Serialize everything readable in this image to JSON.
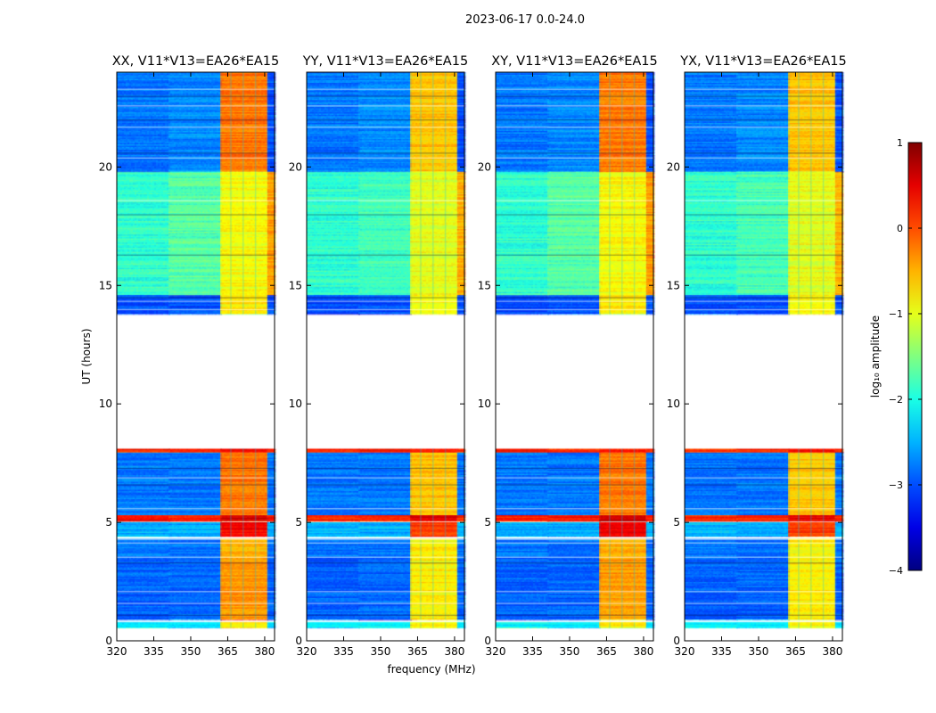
{
  "chart_data": {
    "type": "heatmap",
    "suptitle": "2023-06-17 0.0-24.0",
    "xlabel": "frequency (MHz)",
    "ylabel": "UT (hours)",
    "xlim": [
      320,
      384
    ],
    "ylim": [
      0,
      24
    ],
    "xticks": [
      "320",
      "335",
      "350",
      "365",
      "380"
    ],
    "yticks": [
      "0",
      "5",
      "10",
      "15",
      "20"
    ],
    "freq_bands_mhz": [
      [
        320,
        341
      ],
      [
        341,
        362
      ],
      [
        362,
        381
      ],
      [
        381,
        384
      ]
    ],
    "time_segments_hours": [
      [
        0.55,
        0.8
      ],
      [
        0.9,
        3.5
      ],
      [
        3.5,
        4.3
      ],
      [
        4.4,
        5.0
      ],
      [
        5.05,
        5.3
      ],
      [
        5.3,
        7.95
      ],
      [
        7.95,
        8.1
      ],
      [
        13.8,
        14.6
      ],
      [
        14.6,
        19.8
      ],
      [
        19.8,
        24.0
      ]
    ],
    "panels": [
      {
        "title": "XX, V11*V13=EA26*EA15",
        "values": [
          [
            -2.2,
            -2.2,
            -0.8,
            -2.2
          ],
          [
            -2.9,
            -2.9,
            -0.4,
            -2.9
          ],
          [
            -2.8,
            -2.8,
            -0.5,
            -2.8
          ],
          [
            -2.5,
            -2.5,
            0.4,
            -2.5
          ],
          [
            0.3,
            0.3,
            0.6,
            0.3
          ],
          [
            -2.8,
            -2.8,
            -0.2,
            -2.8
          ],
          [
            0.2,
            0.2,
            0.3,
            0.2
          ],
          [
            -3.0,
            -3.0,
            -0.8,
            -3.0
          ],
          [
            -1.9,
            -1.7,
            -0.9,
            -0.4
          ],
          [
            -2.8,
            -2.7,
            -0.2,
            -3.0
          ]
        ]
      },
      {
        "title": "YY, V11*V13=EA26*EA15",
        "values": [
          [
            -2.2,
            -2.2,
            -0.9,
            -2.2
          ],
          [
            -2.9,
            -2.9,
            -0.8,
            -2.9
          ],
          [
            -2.8,
            -2.8,
            -0.8,
            -2.8
          ],
          [
            -2.5,
            -2.5,
            0.1,
            -2.5
          ],
          [
            0.2,
            0.2,
            0.5,
            0.2
          ],
          [
            -2.8,
            -2.8,
            -0.6,
            -2.8
          ],
          [
            0.2,
            0.2,
            0.3,
            0.2
          ],
          [
            -3.0,
            -3.0,
            -0.9,
            -3.0
          ],
          [
            -1.9,
            -1.8,
            -1.0,
            -0.5
          ],
          [
            -2.8,
            -2.7,
            -0.6,
            -3.0
          ]
        ]
      },
      {
        "title": "XY, V11*V13=EA26*EA15",
        "values": [
          [
            -2.2,
            -2.2,
            -0.8,
            -2.2
          ],
          [
            -2.9,
            -2.9,
            -0.4,
            -2.9
          ],
          [
            -2.8,
            -2.8,
            -0.5,
            -2.8
          ],
          [
            -2.5,
            -2.5,
            0.4,
            -2.5
          ],
          [
            0.3,
            0.3,
            0.6,
            0.3
          ],
          [
            -2.8,
            -2.8,
            -0.2,
            -2.8
          ],
          [
            0.2,
            0.2,
            0.3,
            0.2
          ],
          [
            -3.0,
            -3.0,
            -0.8,
            -3.0
          ],
          [
            -1.9,
            -1.7,
            -0.9,
            -0.4
          ],
          [
            -2.8,
            -2.7,
            -0.2,
            -3.0
          ]
        ]
      },
      {
        "title": "YX, V11*V13=EA26*EA15",
        "values": [
          [
            -2.2,
            -2.2,
            -0.9,
            -2.2
          ],
          [
            -2.9,
            -2.9,
            -0.8,
            -2.9
          ],
          [
            -2.8,
            -2.8,
            -0.8,
            -2.8
          ],
          [
            -2.5,
            -2.5,
            0.1,
            -2.5
          ],
          [
            0.2,
            0.2,
            0.5,
            0.2
          ],
          [
            -2.8,
            -2.8,
            -0.6,
            -2.8
          ],
          [
            0.2,
            0.2,
            0.3,
            0.2
          ],
          [
            -3.0,
            -3.0,
            -0.9,
            -3.0
          ],
          [
            -1.9,
            -1.8,
            -1.0,
            -0.5
          ],
          [
            -2.8,
            -2.7,
            -0.6,
            -3.0
          ]
        ]
      }
    ],
    "colorbar": {
      "label": "log₁₀ amplitude",
      "range": [
        -4,
        1
      ],
      "ticks": [
        "1",
        "0",
        "−1",
        "−2",
        "−3",
        "−4"
      ],
      "colormap": "jet"
    }
  }
}
